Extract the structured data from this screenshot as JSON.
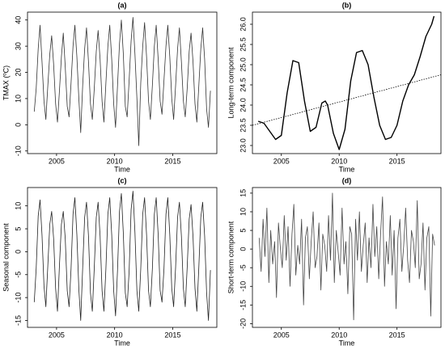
{
  "chart_data": [
    {
      "type": "line",
      "title": "(a)",
      "xlabel": "Time",
      "ylabel": "TMAX (ºC)",
      "color": "#333333",
      "x": [
        2003.08,
        2003.25,
        2003.42,
        2003.58,
        2003.75,
        2003.92,
        2004.08,
        2004.25,
        2004.42,
        2004.58,
        2004.75,
        2004.92,
        2005.08,
        2005.25,
        2005.42,
        2005.58,
        2005.75,
        2005.92,
        2006.08,
        2006.25,
        2006.42,
        2006.58,
        2006.75,
        2006.92,
        2007.08,
        2007.25,
        2007.42,
        2007.58,
        2007.75,
        2007.92,
        2008.08,
        2008.25,
        2008.42,
        2008.58,
        2008.75,
        2008.92,
        2009.08,
        2009.25,
        2009.42,
        2009.58,
        2009.75,
        2009.92,
        2010.08,
        2010.25,
        2010.42,
        2010.58,
        2010.75,
        2010.92,
        2011.08,
        2011.25,
        2011.42,
        2011.58,
        2011.75,
        2011.92,
        2012.08,
        2012.25,
        2012.42,
        2012.58,
        2012.75,
        2012.92,
        2013.08,
        2013.25,
        2013.42,
        2013.58,
        2013.75,
        2013.92,
        2014.08,
        2014.25,
        2014.42,
        2014.58,
        2014.75,
        2014.92,
        2015.08,
        2015.25,
        2015.42,
        2015.58,
        2015.75,
        2015.92,
        2016.08,
        2016.25,
        2016.42,
        2016.58,
        2016.75,
        2016.92,
        2017.08,
        2017.25,
        2017.42,
        2017.58,
        2017.75,
        2017.92,
        2018.08,
        2018.25
      ],
      "values": [
        5,
        14,
        29,
        38,
        24,
        9,
        2,
        15,
        27,
        34,
        23,
        8,
        1,
        13,
        26,
        35,
        22,
        7,
        3,
        16,
        30,
        38,
        26,
        10,
        -3,
        15,
        29,
        37,
        24,
        8,
        2,
        14,
        28,
        36,
        25,
        9,
        1,
        16,
        30,
        38,
        25,
        8,
        -1,
        15,
        31,
        40,
        27,
        7,
        3,
        17,
        32,
        41,
        27,
        10,
        -8,
        16,
        30,
        39,
        26,
        9,
        2,
        15,
        30,
        38,
        25,
        9,
        4,
        17,
        30,
        38,
        26,
        10,
        2,
        15,
        29,
        37,
        24,
        9,
        3,
        14,
        28,
        35,
        24,
        8,
        1,
        15,
        29,
        37,
        25,
        6,
        -1,
        13
      ],
      "xlim": [
        2002.5,
        2018.8
      ],
      "ylim": [
        -11,
        43
      ],
      "xticks": [
        2005,
        2010,
        2015
      ],
      "yticks": [
        -10,
        0,
        10,
        20,
        30,
        40
      ]
    },
    {
      "type": "trend",
      "title": "(b)",
      "xlabel": "Time",
      "ylabel": "Long-term component",
      "color": "#000000",
      "x": [
        2003.0,
        2003.5,
        2004.0,
        2004.5,
        2005.0,
        2005.5,
        2006.0,
        2006.5,
        2007.0,
        2007.5,
        2008.0,
        2008.5,
        2008.8,
        2009.0,
        2009.5,
        2010.0,
        2010.5,
        2011.0,
        2011.5,
        2012.0,
        2012.5,
        2013.0,
        2013.5,
        2014.0,
        2014.5,
        2015.0,
        2015.5,
        2016.0,
        2016.5,
        2017.0,
        2017.5,
        2018.0,
        2018.2
      ],
      "values": [
        23.6,
        23.55,
        23.35,
        23.15,
        23.25,
        24.3,
        25.1,
        25.05,
        24.1,
        23.35,
        23.45,
        24.05,
        24.1,
        24.0,
        23.3,
        22.9,
        23.4,
        24.6,
        25.3,
        25.35,
        25.0,
        24.2,
        23.5,
        23.15,
        23.2,
        23.5,
        24.1,
        24.5,
        24.75,
        25.2,
        25.7,
        26.0,
        26.2
      ],
      "trend_x": [
        2002.5,
        2018.8
      ],
      "trend_values": [
        23.5,
        24.75
      ],
      "xlim": [
        2002.5,
        2018.8
      ],
      "ylim": [
        22.8,
        26.3
      ],
      "xticks": [
        2005,
        2010,
        2015
      ],
      "yticks": [
        {
          "value": 23,
          "label": "23.0"
        },
        23.5,
        {
          "value": 24,
          "label": "24.0"
        },
        24.5,
        {
          "value": 25,
          "label": "25.0"
        },
        25.5,
        {
          "value": 26,
          "label": "26.0"
        }
      ]
    },
    {
      "type": "line",
      "title": "(c)",
      "xlabel": "Time",
      "ylabel": "Seasonal component",
      "color": "#222222",
      "x": [
        2003.08,
        2003.25,
        2003.42,
        2003.58,
        2003.75,
        2003.92,
        2004.08,
        2004.25,
        2004.42,
        2004.58,
        2004.75,
        2004.92,
        2005.08,
        2005.25,
        2005.42,
        2005.58,
        2005.75,
        2005.92,
        2006.08,
        2006.25,
        2006.42,
        2006.58,
        2006.75,
        2006.92,
        2007.08,
        2007.25,
        2007.42,
        2007.58,
        2007.75,
        2007.92,
        2008.08,
        2008.25,
        2008.42,
        2008.58,
        2008.75,
        2008.92,
        2009.08,
        2009.25,
        2009.42,
        2009.58,
        2009.75,
        2009.92,
        2010.08,
        2010.25,
        2010.42,
        2010.58,
        2010.75,
        2010.92,
        2011.08,
        2011.25,
        2011.42,
        2011.58,
        2011.75,
        2011.92,
        2012.08,
        2012.25,
        2012.42,
        2012.58,
        2012.75,
        2012.92,
        2013.08,
        2013.25,
        2013.42,
        2013.58,
        2013.75,
        2013.92,
        2014.08,
        2014.25,
        2014.42,
        2014.58,
        2014.75,
        2014.92,
        2015.08,
        2015.25,
        2015.42,
        2015.58,
        2015.75,
        2015.92,
        2016.08,
        2016.25,
        2016.42,
        2016.58,
        2016.75,
        2016.92,
        2017.08,
        2017.25,
        2017.42,
        2017.58,
        2017.75,
        2017.92,
        2018.08,
        2018.25
      ],
      "values": [
        -11,
        -3.5,
        7.8,
        11.3,
        3.6,
        -7.5,
        -12,
        -3,
        6,
        8.8,
        2.8,
        -8,
        -13,
        -3,
        6,
        8.8,
        2.8,
        -8.5,
        -12,
        -3.7,
        8.2,
        11.8,
        3.7,
        -8.2,
        -15,
        -3.5,
        7.5,
        10.8,
        3.4,
        -9,
        -13,
        -3.4,
        7.5,
        10.8,
        3.4,
        -8.5,
        -13,
        -3.7,
        8.2,
        11.8,
        3.7,
        -8.5,
        -14,
        -4,
        8.8,
        12.7,
        4,
        -9,
        -12,
        -4.2,
        9.2,
        13.2,
        4.2,
        -8.5,
        -13,
        -3.7,
        8.2,
        11.8,
        3.7,
        -8.5,
        -12,
        -3.7,
        8.2,
        11.8,
        3.7,
        -8.5,
        -11,
        -3.7,
        8.2,
        11.8,
        3.7,
        -8,
        -12,
        -3.4,
        7.5,
        10.8,
        3.4,
        -8,
        -12,
        -3.3,
        7.1,
        10.3,
        3.3,
        -8,
        -13,
        -3.4,
        7.5,
        10.8,
        3.4,
        -9,
        -15,
        -4
      ],
      "xlim": [
        2002.5,
        2018.8
      ],
      "ylim": [
        -16.5,
        14
      ],
      "xticks": [
        2005,
        2010,
        2015
      ],
      "yticks": [
        -15,
        -10,
        -5,
        0,
        5,
        10
      ]
    },
    {
      "type": "line",
      "title": "(d)",
      "xlabel": "Time",
      "ylabel": "Short-term component",
      "color": "#444444",
      "x": [
        2003.08,
        2003.25,
        2003.42,
        2003.58,
        2003.75,
        2003.92,
        2004.08,
        2004.25,
        2004.42,
        2004.58,
        2004.75,
        2004.92,
        2005.08,
        2005.25,
        2005.42,
        2005.58,
        2005.75,
        2005.92,
        2006.08,
        2006.25,
        2006.42,
        2006.58,
        2006.75,
        2006.92,
        2007.08,
        2007.25,
        2007.42,
        2007.58,
        2007.75,
        2007.92,
        2008.08,
        2008.25,
        2008.42,
        2008.58,
        2008.75,
        2008.92,
        2009.08,
        2009.25,
        2009.42,
        2009.58,
        2009.75,
        2009.92,
        2010.08,
        2010.25,
        2010.42,
        2010.58,
        2010.75,
        2010.92,
        2011.08,
        2011.25,
        2011.42,
        2011.58,
        2011.75,
        2011.92,
        2012.08,
        2012.25,
        2012.42,
        2012.58,
        2012.75,
        2012.92,
        2013.08,
        2013.25,
        2013.42,
        2013.58,
        2013.75,
        2013.92,
        2014.08,
        2014.25,
        2014.42,
        2014.58,
        2014.75,
        2014.92,
        2015.08,
        2015.25,
        2015.42,
        2015.58,
        2015.75,
        2015.92,
        2016.08,
        2016.25,
        2016.42,
        2016.58,
        2016.75,
        2016.92,
        2017.08,
        2017.25,
        2017.42,
        2017.58,
        2017.75,
        2017.92,
        2018.08,
        2018.25
      ],
      "values": [
        3,
        -6,
        8,
        -2,
        11,
        -9,
        5,
        -4,
        2,
        -13,
        7,
        0,
        -5,
        9,
        -3,
        6,
        -10,
        4,
        12,
        -7,
        1,
        -4,
        8,
        -15,
        3,
        6,
        -8,
        2,
        10,
        -5,
        -2,
        7,
        -11,
        4,
        1,
        -6,
        9,
        -3,
        15,
        -9,
        5,
        -1,
        -7,
        11,
        -4,
        2,
        -12,
        6,
        4,
        -19,
        8,
        -3,
        10,
        -6,
        1,
        7,
        -9,
        3,
        -5,
        12,
        -2,
        6,
        -8,
        4,
        14,
        -10,
        2,
        -4,
        9,
        -7,
        5,
        -16,
        3,
        8,
        -6,
        1,
        11,
        -3,
        -9,
        5,
        2,
        -5,
        13,
        -8,
        -4,
        7,
        -11,
        3,
        6,
        -18,
        4,
        1
      ],
      "xlim": [
        2002.5,
        2018.8
      ],
      "ylim": [
        -21,
        16.5
      ],
      "xticks": [
        2005,
        2010,
        2015
      ],
      "yticks": [
        -20,
        -15,
        -10,
        -5,
        0,
        5,
        10,
        15
      ]
    }
  ]
}
